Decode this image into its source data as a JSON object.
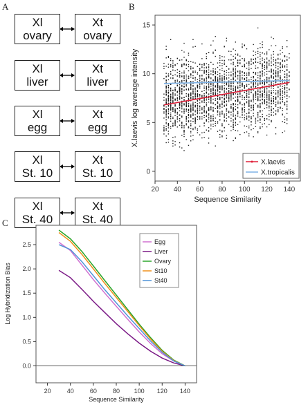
{
  "panels": {
    "a": "A",
    "b": "B",
    "c": "C"
  },
  "panel_a": {
    "pairs": [
      {
        "left": [
          "Xl",
          "ovary"
        ],
        "right": [
          "Xt",
          "ovary"
        ]
      },
      {
        "left": [
          "Xl",
          "liver"
        ],
        "right": [
          "Xt",
          "liver"
        ]
      },
      {
        "left": [
          "Xl",
          "egg"
        ],
        "right": [
          "Xt",
          "egg"
        ]
      },
      {
        "left": [
          "Xl",
          "St. 10"
        ],
        "right": [
          "Xt",
          "St. 10"
        ]
      },
      {
        "left": [
          "Xl",
          "St. 40"
        ],
        "right": [
          "Xt",
          "St. 40"
        ]
      }
    ]
  },
  "chart_data": [
    {
      "type": "scatter",
      "panel": "B",
      "xlabel": "Sequence Similarity",
      "ylabel": "X.laevis log average intensity",
      "xlim": [
        20,
        150
      ],
      "ylim": [
        -1,
        16
      ],
      "xticks": [
        20,
        40,
        60,
        80,
        100,
        120,
        140
      ],
      "yticks": [
        0,
        5,
        10,
        15
      ],
      "grid": false,
      "legend_position": "bottom-right",
      "scatter_cloud": {
        "x_range": [
          28,
          140
        ],
        "y_center": 7.5,
        "y_spread": 3.5,
        "y_min": 0,
        "y_max": 15.5
      },
      "series": [
        {
          "name": "X.laevis",
          "color": "#e0203a",
          "x": [
            28,
            140
          ],
          "y": [
            6.8,
            9.1
          ]
        },
        {
          "name": "X.tropicalis",
          "color": "#7fb2e5",
          "x": [
            28,
            140
          ],
          "y": [
            9.0,
            9.3
          ]
        }
      ]
    },
    {
      "type": "line",
      "panel": "C",
      "xlabel": "Sequence Similarity",
      "ylabel": "Log Hybridization Bias",
      "xlim": [
        10,
        150
      ],
      "ylim": [
        -0.35,
        2.9
      ],
      "xticks": [
        20,
        40,
        60,
        80,
        100,
        120,
        140
      ],
      "yticks": [
        0.0,
        0.5,
        1.0,
        1.5,
        2.0,
        2.5
      ],
      "ytick_labels": [
        "0.0",
        "0.5",
        "1.0",
        "1.5",
        "2.0",
        "2.5"
      ],
      "grid": false,
      "legend_position": "top-right",
      "x": [
        30,
        40,
        50,
        60,
        70,
        80,
        90,
        100,
        110,
        120,
        130,
        140
      ],
      "series": [
        {
          "name": "Egg",
          "color": "#d070d0",
          "values": [
            2.55,
            2.38,
            2.08,
            1.78,
            1.5,
            1.23,
            0.96,
            0.7,
            0.46,
            0.25,
            0.1,
            0.0
          ]
        },
        {
          "name": "Liver",
          "color": "#7b1a86",
          "values": [
            1.97,
            1.82,
            1.58,
            1.33,
            1.1,
            0.87,
            0.66,
            0.47,
            0.3,
            0.16,
            0.06,
            0.0
          ]
        },
        {
          "name": "Ovary",
          "color": "#2aa52a",
          "values": [
            2.8,
            2.62,
            2.36,
            2.06,
            1.76,
            1.46,
            1.16,
            0.86,
            0.58,
            0.32,
            0.12,
            0.0
          ]
        },
        {
          "name": "St10",
          "color": "#f0901a",
          "values": [
            2.75,
            2.57,
            2.3,
            2.0,
            1.7,
            1.41,
            1.12,
            0.83,
            0.55,
            0.3,
            0.11,
            0.0
          ]
        },
        {
          "name": "St40",
          "color": "#4f93d8",
          "values": [
            2.5,
            2.4,
            2.15,
            1.86,
            1.57,
            1.3,
            1.03,
            0.77,
            0.51,
            0.28,
            0.1,
            0.0
          ]
        }
      ]
    }
  ]
}
